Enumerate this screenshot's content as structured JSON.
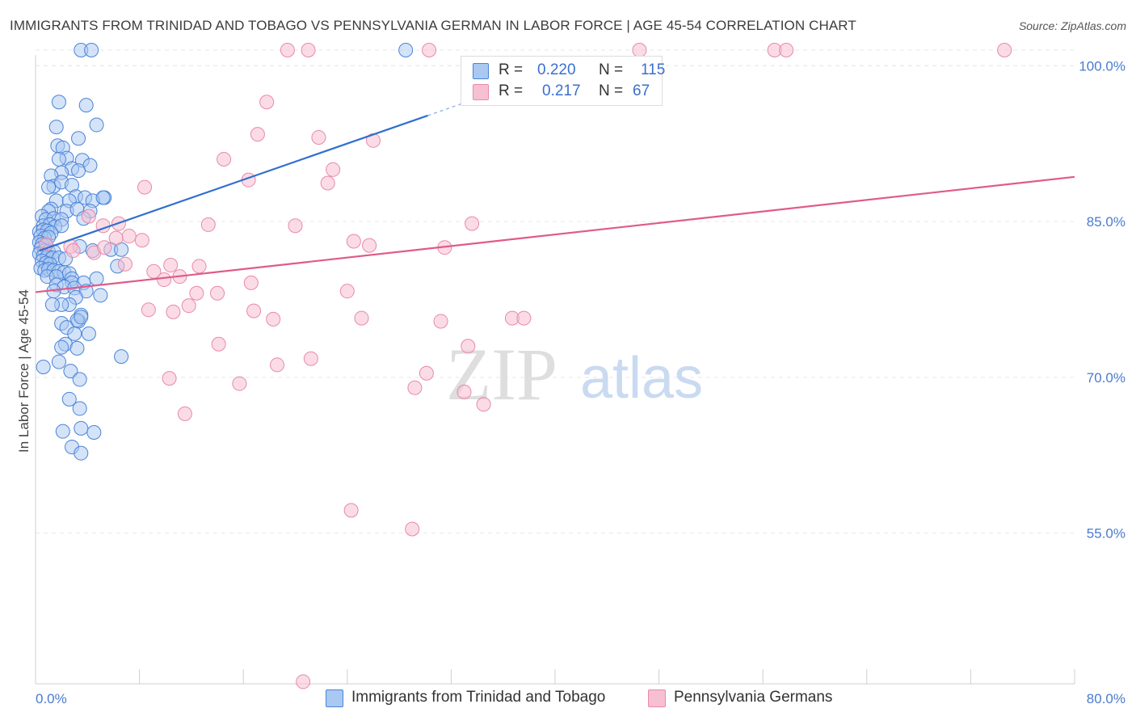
{
  "title": "IMMIGRANTS FROM TRINIDAD AND TOBAGO VS PENNSYLVANIA GERMAN IN LABOR FORCE | AGE 45-54 CORRELATION CHART",
  "source": "Source: ZipAtlas.com",
  "watermark": {
    "zip": "ZIP",
    "atlas": "atlas"
  },
  "legend": {
    "r_label": "R =",
    "n_label": "N =",
    "rows": [
      {
        "r": "0.220",
        "n": "115"
      },
      {
        "r": "0.217",
        "n": "67"
      }
    ]
  },
  "colors": {
    "blue_fill": "#a9c8f2",
    "blue_stroke": "#4a84d8",
    "blue_line": "#2f6fcf",
    "pink_fill": "#f7c0d2",
    "pink_stroke": "#e889a8",
    "pink_line": "#e05a8a",
    "tick_text": "#4a7bd0",
    "grid": "#e6e6e6"
  },
  "chart_data": {
    "type": "scatter",
    "title": "IMMIGRANTS FROM TRINIDAD AND TOBAGO VS PENNSYLVANIA GERMAN IN LABOR FORCE | AGE 45-54 CORRELATION CHART",
    "xlabel": "",
    "ylabel": "In Labor Force | Age 45-54",
    "xlim": [
      0,
      80
    ],
    "ylim": [
      40.5,
      101.5
    ],
    "x_tick_labels": [
      "0.0%",
      "80.0%"
    ],
    "y_ticks": [
      55,
      70,
      85,
      100
    ],
    "y_tick_labels": [
      "55.0%",
      "70.0%",
      "85.0%",
      "100.0%"
    ],
    "grid": true,
    "legend_position": "top-center",
    "series": [
      {
        "name": "Immigrants from Trinidad and Tobago",
        "color": "#4a84d8",
        "trend": {
          "x": [
            0.3,
            30.2
          ],
          "y": [
            82.2,
            95.2
          ],
          "dashed_extension_to": [
            35.0,
            97.3
          ]
        },
        "points": [
          [
            3.5,
            101.5
          ],
          [
            4.3,
            101.5
          ],
          [
            28.5,
            101.5
          ],
          [
            1.8,
            96.5
          ],
          [
            3.9,
            96.2
          ],
          [
            4.7,
            94.3
          ],
          [
            1.6,
            94.1
          ],
          [
            3.3,
            93.0
          ],
          [
            1.7,
            92.3
          ],
          [
            2.1,
            92.1
          ],
          [
            2.4,
            91.1
          ],
          [
            1.8,
            91.0
          ],
          [
            3.6,
            90.9
          ],
          [
            2.8,
            90.1
          ],
          [
            4.2,
            90.4
          ],
          [
            2.0,
            89.7
          ],
          [
            3.3,
            89.9
          ],
          [
            1.2,
            89.4
          ],
          [
            1.4,
            88.4
          ],
          [
            2.0,
            88.8
          ],
          [
            2.8,
            88.5
          ],
          [
            1.0,
            88.3
          ],
          [
            3.1,
            87.4
          ],
          [
            3.8,
            87.3
          ],
          [
            5.3,
            87.3
          ],
          [
            1.6,
            87.0
          ],
          [
            2.6,
            87.0
          ],
          [
            4.4,
            87.0
          ],
          [
            5.2,
            87.3
          ],
          [
            1.2,
            86.2
          ],
          [
            2.4,
            86.0
          ],
          [
            3.2,
            86.2
          ],
          [
            1.0,
            86.0
          ],
          [
            4.2,
            86.0
          ],
          [
            0.5,
            85.5
          ],
          [
            0.8,
            85.2
          ],
          [
            1.4,
            85.3
          ],
          [
            2.0,
            85.2
          ],
          [
            3.7,
            85.3
          ],
          [
            0.6,
            84.6
          ],
          [
            1.1,
            84.7
          ],
          [
            1.5,
            84.5
          ],
          [
            2.0,
            84.6
          ],
          [
            0.3,
            84.0
          ],
          [
            0.6,
            84.2
          ],
          [
            0.9,
            84.1
          ],
          [
            1.2,
            83.9
          ],
          [
            0.4,
            83.6
          ],
          [
            0.7,
            83.4
          ],
          [
            1.0,
            83.5
          ],
          [
            0.3,
            83.0
          ],
          [
            0.5,
            82.8
          ],
          [
            0.8,
            82.7
          ],
          [
            0.4,
            82.4
          ],
          [
            0.7,
            82.2
          ],
          [
            1.0,
            82.1
          ],
          [
            1.4,
            82.1
          ],
          [
            0.3,
            81.9
          ],
          [
            0.6,
            81.7
          ],
          [
            0.9,
            81.6
          ],
          [
            1.3,
            81.5
          ],
          [
            1.8,
            81.5
          ],
          [
            2.3,
            81.4
          ],
          [
            0.5,
            81.2
          ],
          [
            0.8,
            81.0
          ],
          [
            1.1,
            80.9
          ],
          [
            0.4,
            80.5
          ],
          [
            0.7,
            80.3
          ],
          [
            1.0,
            80.4
          ],
          [
            1.4,
            80.3
          ],
          [
            1.8,
            80.2
          ],
          [
            2.2,
            80.1
          ],
          [
            2.6,
            80.0
          ],
          [
            3.4,
            82.6
          ],
          [
            4.4,
            82.2
          ],
          [
            5.8,
            82.3
          ],
          [
            6.6,
            82.3
          ],
          [
            0.9,
            79.7
          ],
          [
            1.6,
            79.7
          ],
          [
            2.8,
            79.5
          ],
          [
            6.3,
            80.7
          ],
          [
            2.8,
            79.1
          ],
          [
            3.7,
            79.1
          ],
          [
            4.7,
            79.5
          ],
          [
            1.6,
            78.9
          ],
          [
            2.2,
            78.7
          ],
          [
            3.0,
            78.6
          ],
          [
            1.4,
            78.3
          ],
          [
            3.9,
            78.3
          ],
          [
            5.0,
            77.9
          ],
          [
            3.1,
            77.7
          ],
          [
            2.6,
            77.0
          ],
          [
            2.0,
            77.0
          ],
          [
            1.3,
            77.0
          ],
          [
            3.5,
            76.0
          ],
          [
            3.3,
            75.4
          ],
          [
            2.0,
            75.2
          ],
          [
            3.2,
            75.5
          ],
          [
            3.5,
            75.8
          ],
          [
            2.4,
            74.8
          ],
          [
            3.0,
            74.2
          ],
          [
            4.1,
            74.2
          ],
          [
            2.3,
            73.2
          ],
          [
            2.0,
            72.9
          ],
          [
            3.2,
            72.8
          ],
          [
            6.6,
            72.0
          ],
          [
            2.7,
            70.6
          ],
          [
            3.4,
            69.8
          ],
          [
            2.6,
            67.9
          ],
          [
            3.4,
            67.0
          ],
          [
            2.1,
            64.8
          ],
          [
            4.5,
            64.7
          ],
          [
            3.5,
            65.1
          ],
          [
            2.8,
            63.3
          ],
          [
            3.5,
            62.7
          ],
          [
            1.8,
            71.5
          ],
          [
            0.6,
            71.0
          ]
        ]
      },
      {
        "name": "Pennsylvania Germans",
        "color": "#e889a8",
        "trend": {
          "x": [
            0,
            80
          ],
          "y": [
            78.2,
            89.3
          ]
        },
        "points": [
          [
            19.4,
            101.5
          ],
          [
            21.0,
            101.5
          ],
          [
            30.3,
            101.5
          ],
          [
            46.5,
            101.5
          ],
          [
            56.9,
            101.5
          ],
          [
            57.8,
            101.5
          ],
          [
            74.6,
            101.5
          ],
          [
            17.8,
            96.5
          ],
          [
            17.1,
            93.4
          ],
          [
            21.8,
            93.1
          ],
          [
            26.0,
            92.8
          ],
          [
            14.5,
            91.0
          ],
          [
            16.4,
            89.0
          ],
          [
            22.5,
            88.7
          ],
          [
            22.9,
            90.0
          ],
          [
            8.4,
            88.3
          ],
          [
            4.1,
            85.5
          ],
          [
            6.4,
            84.8
          ],
          [
            13.3,
            84.7
          ],
          [
            20.0,
            84.6
          ],
          [
            33.6,
            84.8
          ],
          [
            0.8,
            82.8
          ],
          [
            2.7,
            82.6
          ],
          [
            5.2,
            84.6
          ],
          [
            6.2,
            83.4
          ],
          [
            8.2,
            83.2
          ],
          [
            24.5,
            83.1
          ],
          [
            25.7,
            82.7
          ],
          [
            31.5,
            82.5
          ],
          [
            2.9,
            82.2
          ],
          [
            4.5,
            82.0
          ],
          [
            5.3,
            82.5
          ],
          [
            7.2,
            83.6
          ],
          [
            6.9,
            80.9
          ],
          [
            10.4,
            80.8
          ],
          [
            12.6,
            80.7
          ],
          [
            11.1,
            79.7
          ],
          [
            9.9,
            79.4
          ],
          [
            9.1,
            80.2
          ],
          [
            16.6,
            79.1
          ],
          [
            24.0,
            78.3
          ],
          [
            12.4,
            78.1
          ],
          [
            14.0,
            78.1
          ],
          [
            11.8,
            76.9
          ],
          [
            8.7,
            76.5
          ],
          [
            10.6,
            76.3
          ],
          [
            16.8,
            76.4
          ],
          [
            18.3,
            75.6
          ],
          [
            25.1,
            75.7
          ],
          [
            31.2,
            75.4
          ],
          [
            36.7,
            75.7
          ],
          [
            37.6,
            75.7
          ],
          [
            14.1,
            73.2
          ],
          [
            33.3,
            73.0
          ],
          [
            18.6,
            71.2
          ],
          [
            30.1,
            70.4
          ],
          [
            21.2,
            71.8
          ],
          [
            10.3,
            69.9
          ],
          [
            15.7,
            69.4
          ],
          [
            29.2,
            69.0
          ],
          [
            33.0,
            68.6
          ],
          [
            34.5,
            67.4
          ],
          [
            11.5,
            66.5
          ],
          [
            24.3,
            57.2
          ],
          [
            29.0,
            55.4
          ],
          [
            20.6,
            40.7
          ]
        ]
      }
    ]
  },
  "bottom_legend": [
    {
      "label": "Immigrants from Trinidad and Tobago"
    },
    {
      "label": "Pennsylvania Germans"
    }
  ]
}
